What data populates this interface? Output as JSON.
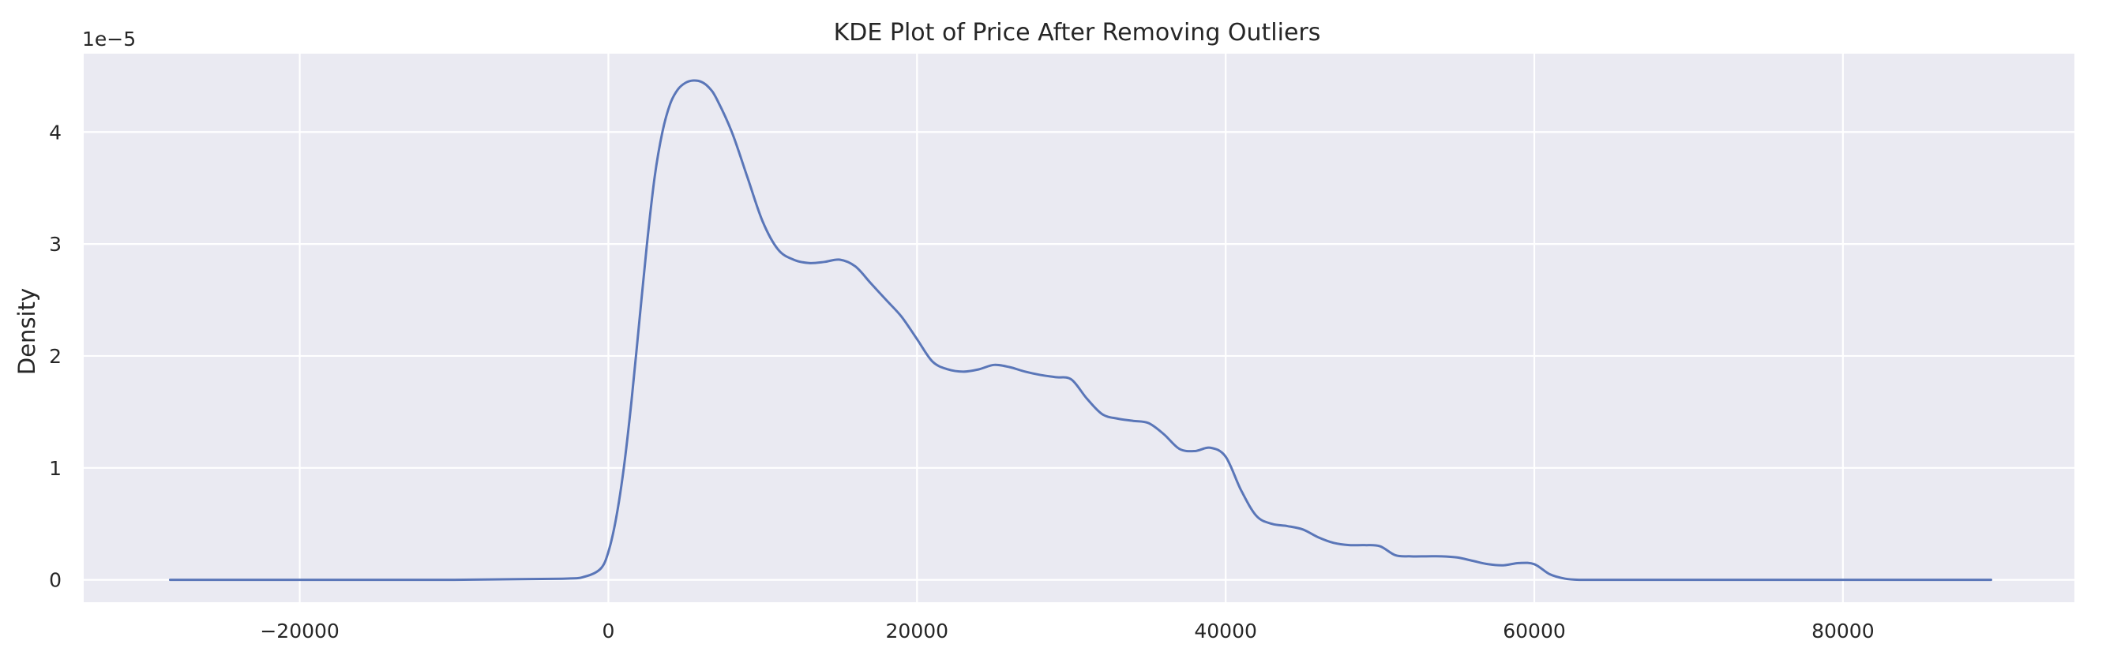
{
  "chart_data": {
    "type": "line",
    "title": "KDE Plot of Price After Removing Outliers",
    "xlabel": "",
    "ylabel": "Density",
    "y_offset_label": "1e−5",
    "xlim": [
      -34000,
      95000
    ],
    "ylim": [
      -0.2,
      4.7
    ],
    "xticks": [
      -20000,
      0,
      20000,
      40000,
      60000,
      80000
    ],
    "xtick_labels": [
      "−20000",
      "0",
      "20000",
      "40000",
      "60000",
      "80000"
    ],
    "yticks": [
      0,
      1,
      2,
      3,
      4
    ],
    "ytick_labels": [
      "0",
      "1",
      "2",
      "3",
      "4"
    ],
    "grid": true,
    "colors": {
      "background": "#eaeaf2",
      "grid": "#ffffff",
      "line": "#5a76b8"
    },
    "series": [
      {
        "x": [
          -28400,
          -20000,
          -10000,
          -3000,
          -1500,
          -500,
          0,
          500,
          1000,
          1500,
          2000,
          2500,
          3000,
          3500,
          4000,
          4500,
          5000,
          5500,
          6000,
          6500,
          7000,
          8000,
          9000,
          10000,
          11000,
          12000,
          13000,
          14000,
          15000,
          16000,
          17000,
          18000,
          19000,
          20000,
          21000,
          22000,
          23000,
          24000,
          25000,
          26000,
          27000,
          28000,
          29000,
          30000,
          31000,
          32000,
          33000,
          34000,
          35000,
          36000,
          37000,
          38000,
          39000,
          40000,
          41000,
          42000,
          43000,
          44000,
          45000,
          46000,
          47000,
          48000,
          49000,
          50000,
          51000,
          52000,
          53000,
          54000,
          55000,
          56000,
          57000,
          58000,
          59000,
          60000,
          61000,
          62000,
          63000,
          65000,
          70000,
          80000,
          89600
        ],
        "y": [
          0,
          0,
          0,
          0.01,
          0.03,
          0.1,
          0.25,
          0.55,
          1.0,
          1.6,
          2.3,
          3.0,
          3.6,
          4.0,
          4.25,
          4.38,
          4.44,
          4.46,
          4.45,
          4.4,
          4.3,
          4.0,
          3.6,
          3.2,
          2.95,
          2.86,
          2.83,
          2.84,
          2.86,
          2.8,
          2.65,
          2.5,
          2.35,
          2.15,
          1.95,
          1.88,
          1.86,
          1.88,
          1.92,
          1.9,
          1.86,
          1.83,
          1.81,
          1.79,
          1.62,
          1.48,
          1.44,
          1.42,
          1.4,
          1.3,
          1.17,
          1.15,
          1.18,
          1.1,
          0.8,
          0.57,
          0.5,
          0.48,
          0.45,
          0.38,
          0.33,
          0.31,
          0.31,
          0.3,
          0.22,
          0.21,
          0.21,
          0.21,
          0.2,
          0.17,
          0.14,
          0.13,
          0.15,
          0.14,
          0.05,
          0.01,
          0,
          0,
          0,
          0,
          0
        ]
      }
    ]
  }
}
